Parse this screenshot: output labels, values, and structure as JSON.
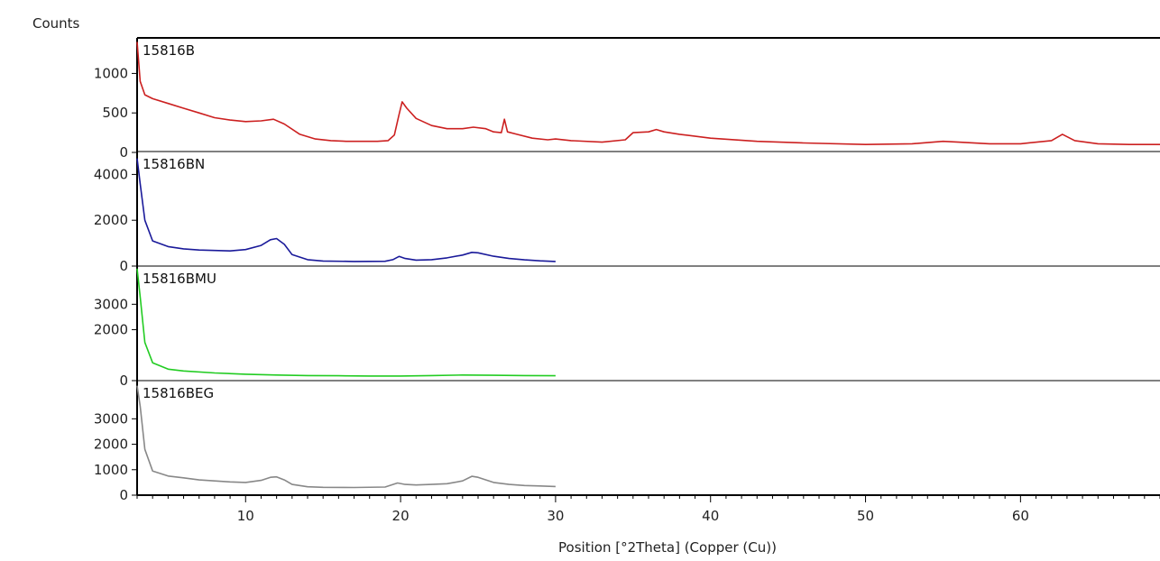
{
  "chart_data": {
    "type": "line",
    "ylabel": "Counts",
    "xlabel": "Position [°2Theta] (Copper (Cu))",
    "xlim": [
      3,
      69
    ],
    "x_ticks": [
      10,
      20,
      30,
      40,
      50,
      60
    ],
    "grid": false,
    "panels": [
      {
        "name": "15816B",
        "color": "#cc2020",
        "ylim": [
          0,
          1450
        ],
        "y_ticks": [
          0,
          500,
          1000
        ],
        "points": [
          [
            3.0,
            1400
          ],
          [
            3.2,
            900
          ],
          [
            3.5,
            730
          ],
          [
            4,
            680
          ],
          [
            5,
            620
          ],
          [
            6,
            560
          ],
          [
            7,
            500
          ],
          [
            8,
            440
          ],
          [
            9,
            410
          ],
          [
            10,
            390
          ],
          [
            11,
            400
          ],
          [
            11.8,
            420
          ],
          [
            12.5,
            360
          ],
          [
            13.5,
            230
          ],
          [
            14.5,
            170
          ],
          [
            15.5,
            150
          ],
          [
            16.5,
            140
          ],
          [
            17.5,
            140
          ],
          [
            18.5,
            140
          ],
          [
            19.2,
            150
          ],
          [
            19.6,
            220
          ],
          [
            19.9,
            480
          ],
          [
            20.1,
            640
          ],
          [
            20.4,
            560
          ],
          [
            21,
            430
          ],
          [
            22,
            340
          ],
          [
            23,
            300
          ],
          [
            24,
            300
          ],
          [
            24.7,
            320
          ],
          [
            25.5,
            300
          ],
          [
            26,
            260
          ],
          [
            26.5,
            250
          ],
          [
            26.7,
            420
          ],
          [
            26.9,
            260
          ],
          [
            27.5,
            230
          ],
          [
            28.5,
            180
          ],
          [
            29.5,
            160
          ],
          [
            30,
            170
          ],
          [
            31,
            150
          ],
          [
            33,
            130
          ],
          [
            34.5,
            160
          ],
          [
            35,
            250
          ],
          [
            36,
            260
          ],
          [
            36.5,
            290
          ],
          [
            37,
            260
          ],
          [
            38,
            230
          ],
          [
            40,
            180
          ],
          [
            43,
            140
          ],
          [
            46,
            120
          ],
          [
            50,
            100
          ],
          [
            53,
            110
          ],
          [
            55,
            140
          ],
          [
            56,
            130
          ],
          [
            58,
            110
          ],
          [
            60,
            110
          ],
          [
            62,
            150
          ],
          [
            62.7,
            230
          ],
          [
            63.5,
            150
          ],
          [
            65,
            110
          ],
          [
            67,
            100
          ],
          [
            69,
            100
          ]
        ]
      },
      {
        "name": "15816BN",
        "color": "#1a1a9a",
        "ylim": [
          0,
          5000
        ],
        "y_ticks": [
          0,
          2000,
          4000
        ],
        "points": [
          [
            3.0,
            4700
          ],
          [
            3.2,
            3600
          ],
          [
            3.5,
            2000
          ],
          [
            4,
            1100
          ],
          [
            5,
            850
          ],
          [
            6,
            750
          ],
          [
            7,
            700
          ],
          [
            8,
            680
          ],
          [
            9,
            660
          ],
          [
            10,
            720
          ],
          [
            11,
            900
          ],
          [
            11.6,
            1150
          ],
          [
            12,
            1200
          ],
          [
            12.5,
            950
          ],
          [
            13,
            500
          ],
          [
            14,
            280
          ],
          [
            15,
            220
          ],
          [
            17,
            200
          ],
          [
            19,
            210
          ],
          [
            19.5,
            280
          ],
          [
            19.9,
            420
          ],
          [
            20.3,
            330
          ],
          [
            21,
            260
          ],
          [
            22,
            280
          ],
          [
            23,
            360
          ],
          [
            24,
            480
          ],
          [
            24.6,
            600
          ],
          [
            25,
            580
          ],
          [
            26,
            430
          ],
          [
            27,
            330
          ],
          [
            28,
            270
          ],
          [
            29,
            230
          ],
          [
            30,
            200
          ]
        ]
      },
      {
        "name": "15816BMU",
        "color": "#22cc22",
        "ylim": [
          0,
          4500
        ],
        "y_ticks": [
          0,
          2000,
          3000
        ],
        "points": [
          [
            3.0,
            4400
          ],
          [
            3.2,
            3300
          ],
          [
            3.5,
            1500
          ],
          [
            4,
            700
          ],
          [
            5,
            450
          ],
          [
            6,
            380
          ],
          [
            8,
            300
          ],
          [
            10,
            250
          ],
          [
            12,
            220
          ],
          [
            14,
            200
          ],
          [
            16,
            190
          ],
          [
            18,
            180
          ],
          [
            20,
            180
          ],
          [
            22,
            200
          ],
          [
            24,
            220
          ],
          [
            26,
            210
          ],
          [
            28,
            200
          ],
          [
            30,
            190
          ]
        ]
      },
      {
        "name": "15816BEG",
        "color": "#888888",
        "ylim": [
          0,
          4500
        ],
        "y_ticks": [
          0,
          1000,
          2000,
          3000
        ],
        "points": [
          [
            3.0,
            4300
          ],
          [
            3.2,
            3500
          ],
          [
            3.5,
            1800
          ],
          [
            4,
            950
          ],
          [
            5,
            750
          ],
          [
            6,
            680
          ],
          [
            7,
            600
          ],
          [
            8,
            560
          ],
          [
            9,
            520
          ],
          [
            10,
            500
          ],
          [
            11,
            580
          ],
          [
            11.6,
            700
          ],
          [
            12,
            720
          ],
          [
            12.5,
            600
          ],
          [
            13,
            420
          ],
          [
            14,
            330
          ],
          [
            15,
            310
          ],
          [
            17,
            300
          ],
          [
            19,
            320
          ],
          [
            19.8,
            480
          ],
          [
            20.3,
            420
          ],
          [
            21,
            400
          ],
          [
            22,
            420
          ],
          [
            23,
            450
          ],
          [
            24,
            560
          ],
          [
            24.6,
            740
          ],
          [
            25,
            700
          ],
          [
            26,
            500
          ],
          [
            27,
            420
          ],
          [
            28,
            380
          ],
          [
            29,
            360
          ],
          [
            30,
            340
          ]
        ]
      }
    ]
  }
}
